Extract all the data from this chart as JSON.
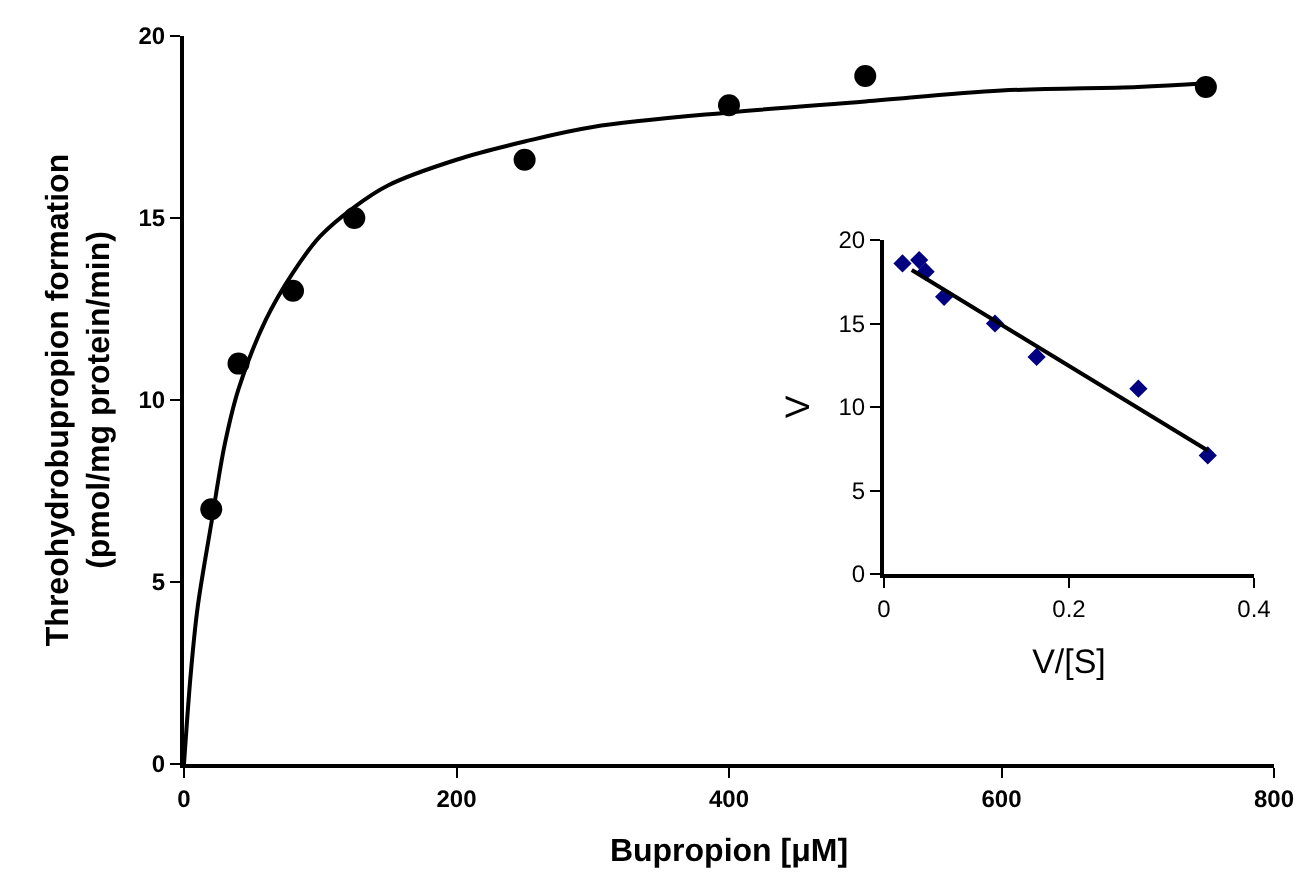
{
  "chart_data": [
    {
      "type": "scatter",
      "xlabel": "Bupropion [μM]",
      "ylabel": "Threohydrobupropion formation\n(pmol/mg protein/min)",
      "xlim": [
        0,
        800
      ],
      "xticks": [
        0,
        200,
        400,
        600,
        800
      ],
      "ylim": [
        0,
        20
      ],
      "yticks": [
        0,
        5,
        10,
        15,
        20
      ],
      "grid": false,
      "series": [
        {
          "color": "#000000",
          "marker": "circle",
          "x": [
            20,
            40,
            80,
            125,
            250,
            400,
            500,
            750
          ],
          "values": [
            7,
            11,
            13,
            15,
            16.6,
            18.1,
            18.9,
            18.6
          ]
        },
        {
          "type": "line",
          "color": "#000000",
          "marker": "none",
          "x": [
            0,
            5,
            10,
            20,
            30,
            40,
            60,
            80,
            100,
            125,
            150,
            200,
            250,
            300,
            400,
            500,
            600,
            700,
            750
          ],
          "values": [
            0,
            2.5,
            4.3,
            6.6,
            8.8,
            10.3,
            12.2,
            13.5,
            14.5,
            15.3,
            15.9,
            16.6,
            17.1,
            17.5,
            17.9,
            18.2,
            18.5,
            18.6,
            18.7
          ]
        }
      ]
    },
    {
      "type": "scatter",
      "xlabel": "V/[S]",
      "ylabel": "V",
      "xlim": [
        0,
        0.4
      ],
      "xticks": [
        0,
        0.2,
        0.4
      ],
      "ylim": [
        0,
        20
      ],
      "yticks": [
        0,
        5,
        10,
        15,
        20
      ],
      "grid": false,
      "series": [
        {
          "color": "#000080",
          "marker": "diamond",
          "x": [
            0.02,
            0.038,
            0.045,
            0.065,
            0.12,
            0.165,
            0.275,
            0.35
          ],
          "values": [
            18.6,
            18.8,
            18.1,
            16.6,
            15.0,
            13.0,
            11.1,
            7.1
          ]
        },
        {
          "type": "line",
          "color": "#000000",
          "marker": "none",
          "x": [
            0.03,
            0.35
          ],
          "values": [
            18.2,
            7.4
          ]
        }
      ]
    }
  ]
}
